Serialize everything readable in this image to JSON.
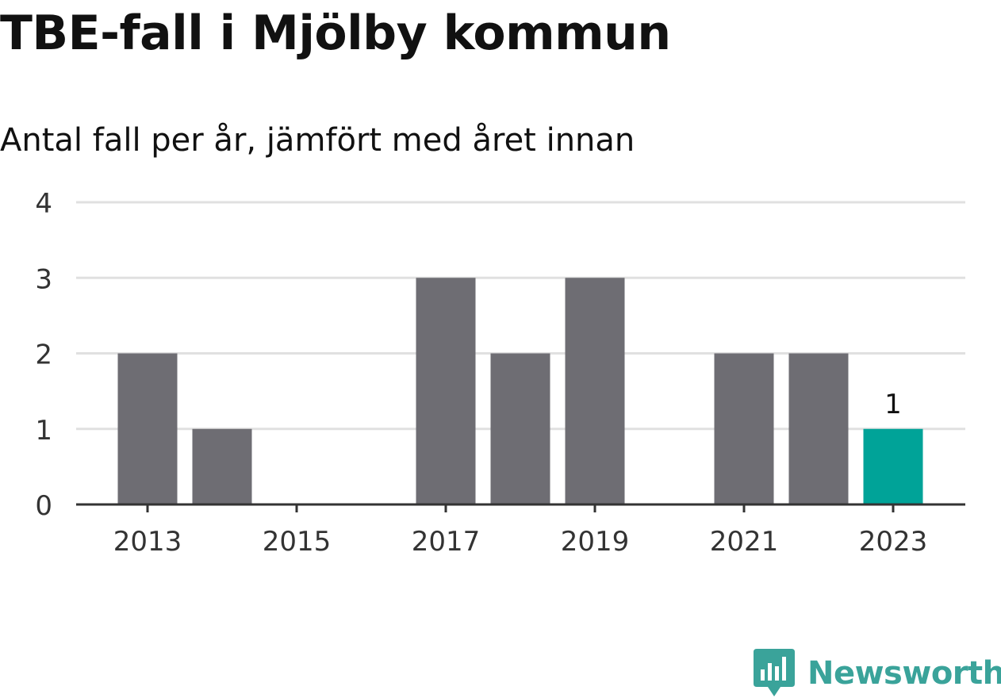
{
  "title": "TBE-fall i Mjölby kommun",
  "subtitle": "Antal fall per år, jämfört med året innan",
  "brand": {
    "name": "Newsworthy",
    "color": "#3aa39a",
    "icon": "newsworthy-logo-icon"
  },
  "colors": {
    "bar": "#6e6d73",
    "highlight": "#00a398",
    "grid": "#e0e0e0",
    "axis": "#333333",
    "text": "#333333"
  },
  "chart_data": {
    "type": "bar",
    "categories": [
      "2013",
      "2014",
      "2015",
      "2016",
      "2017",
      "2018",
      "2019",
      "2020",
      "2021",
      "2022",
      "2023"
    ],
    "values": [
      2,
      1,
      0,
      0,
      3,
      2,
      3,
      0,
      2,
      2,
      1
    ],
    "x_tick_labels": [
      "2013",
      "2015",
      "2017",
      "2019",
      "2021",
      "2023"
    ],
    "y_ticks": [
      0,
      1,
      2,
      3,
      4
    ],
    "ylim": [
      0,
      4
    ],
    "highlight_category": "2023",
    "data_labels": [
      {
        "category": "2023",
        "text": "1"
      }
    ],
    "grid": true,
    "legend": false
  }
}
